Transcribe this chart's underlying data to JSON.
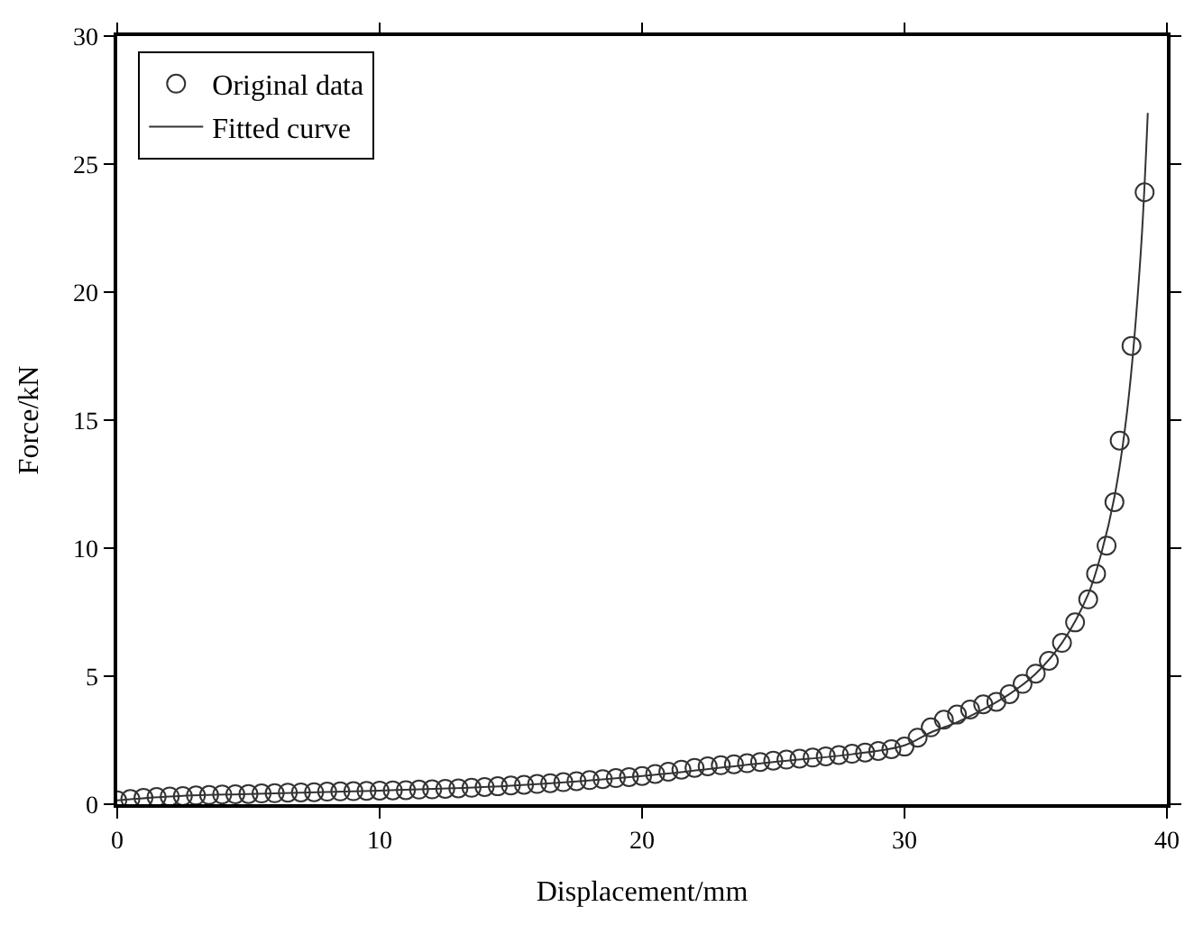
{
  "chart_data": {
    "type": "scatter",
    "xlabel": "Displacement/mm",
    "ylabel": "Force/kN",
    "xlim": [
      0,
      40
    ],
    "xticks": [
      0,
      10,
      20,
      30,
      40
    ],
    "ylim": [
      0,
      30
    ],
    "yticks": [
      0,
      5,
      10,
      15,
      20,
      25,
      30
    ],
    "grid": false,
    "legend": "top left",
    "series": [
      {
        "name": "Original data",
        "marker": "circle",
        "color": "#333333",
        "x": [
          0,
          0.5,
          1,
          1.5,
          2,
          2.5,
          3,
          3.5,
          4,
          4.5,
          5,
          5.5,
          6,
          6.5,
          7,
          7.5,
          8,
          8.5,
          9,
          9.5,
          10,
          10.5,
          11,
          11.5,
          12,
          12.5,
          13,
          13.5,
          14,
          14.5,
          15,
          15.5,
          16,
          16.5,
          17,
          17.5,
          18,
          18.5,
          19,
          19.5,
          20,
          20.5,
          21,
          21.5,
          22,
          22.5,
          23,
          23.5,
          24,
          24.5,
          25,
          25.5,
          26,
          26.5,
          27,
          27.5,
          28,
          28.5,
          29,
          29.5,
          30,
          30.5,
          31,
          31.5,
          32,
          32.5,
          33,
          33.5,
          34,
          34.5,
          35,
          35.5,
          36,
          36.5,
          37,
          37.3,
          37.7,
          38,
          38.2,
          38.65,
          39.15
        ],
        "values": [
          0.15,
          0.2,
          0.25,
          0.28,
          0.3,
          0.32,
          0.34,
          0.36,
          0.38,
          0.39,
          0.4,
          0.42,
          0.43,
          0.45,
          0.46,
          0.47,
          0.49,
          0.5,
          0.51,
          0.52,
          0.53,
          0.54,
          0.55,
          0.57,
          0.58,
          0.6,
          0.62,
          0.64,
          0.67,
          0.7,
          0.73,
          0.76,
          0.79,
          0.82,
          0.86,
          0.9,
          0.94,
          0.98,
          1.02,
          1.06,
          1.1,
          1.18,
          1.27,
          1.35,
          1.42,
          1.48,
          1.52,
          1.56,
          1.6,
          1.65,
          1.7,
          1.74,
          1.78,
          1.82,
          1.87,
          1.92,
          1.97,
          2.02,
          2.08,
          2.15,
          2.25,
          2.6,
          3.0,
          3.3,
          3.5,
          3.7,
          3.9,
          4.0,
          4.3,
          4.7,
          5.1,
          5.6,
          6.3,
          7.1,
          8.0,
          9.0,
          10.1,
          11.8,
          14.2,
          17.9,
          23.9
        ]
      },
      {
        "name": "Fitted curve",
        "type": "line",
        "marker": "none",
        "line_style": "solid",
        "color": "#333333",
        "x": [
          0,
          2,
          5,
          10,
          15,
          20,
          25,
          28,
          30,
          31,
          32,
          33,
          34,
          35,
          36,
          37,
          37.5,
          38,
          38.5,
          39,
          39.27
        ],
        "values": [
          0.15,
          0.3,
          0.4,
          0.53,
          0.72,
          1.1,
          1.65,
          1.95,
          2.3,
          2.8,
          3.2,
          3.7,
          4.3,
          5.1,
          6.3,
          8.2,
          9.8,
          12.0,
          15.5,
          21.5,
          27.0
        ]
      }
    ]
  }
}
